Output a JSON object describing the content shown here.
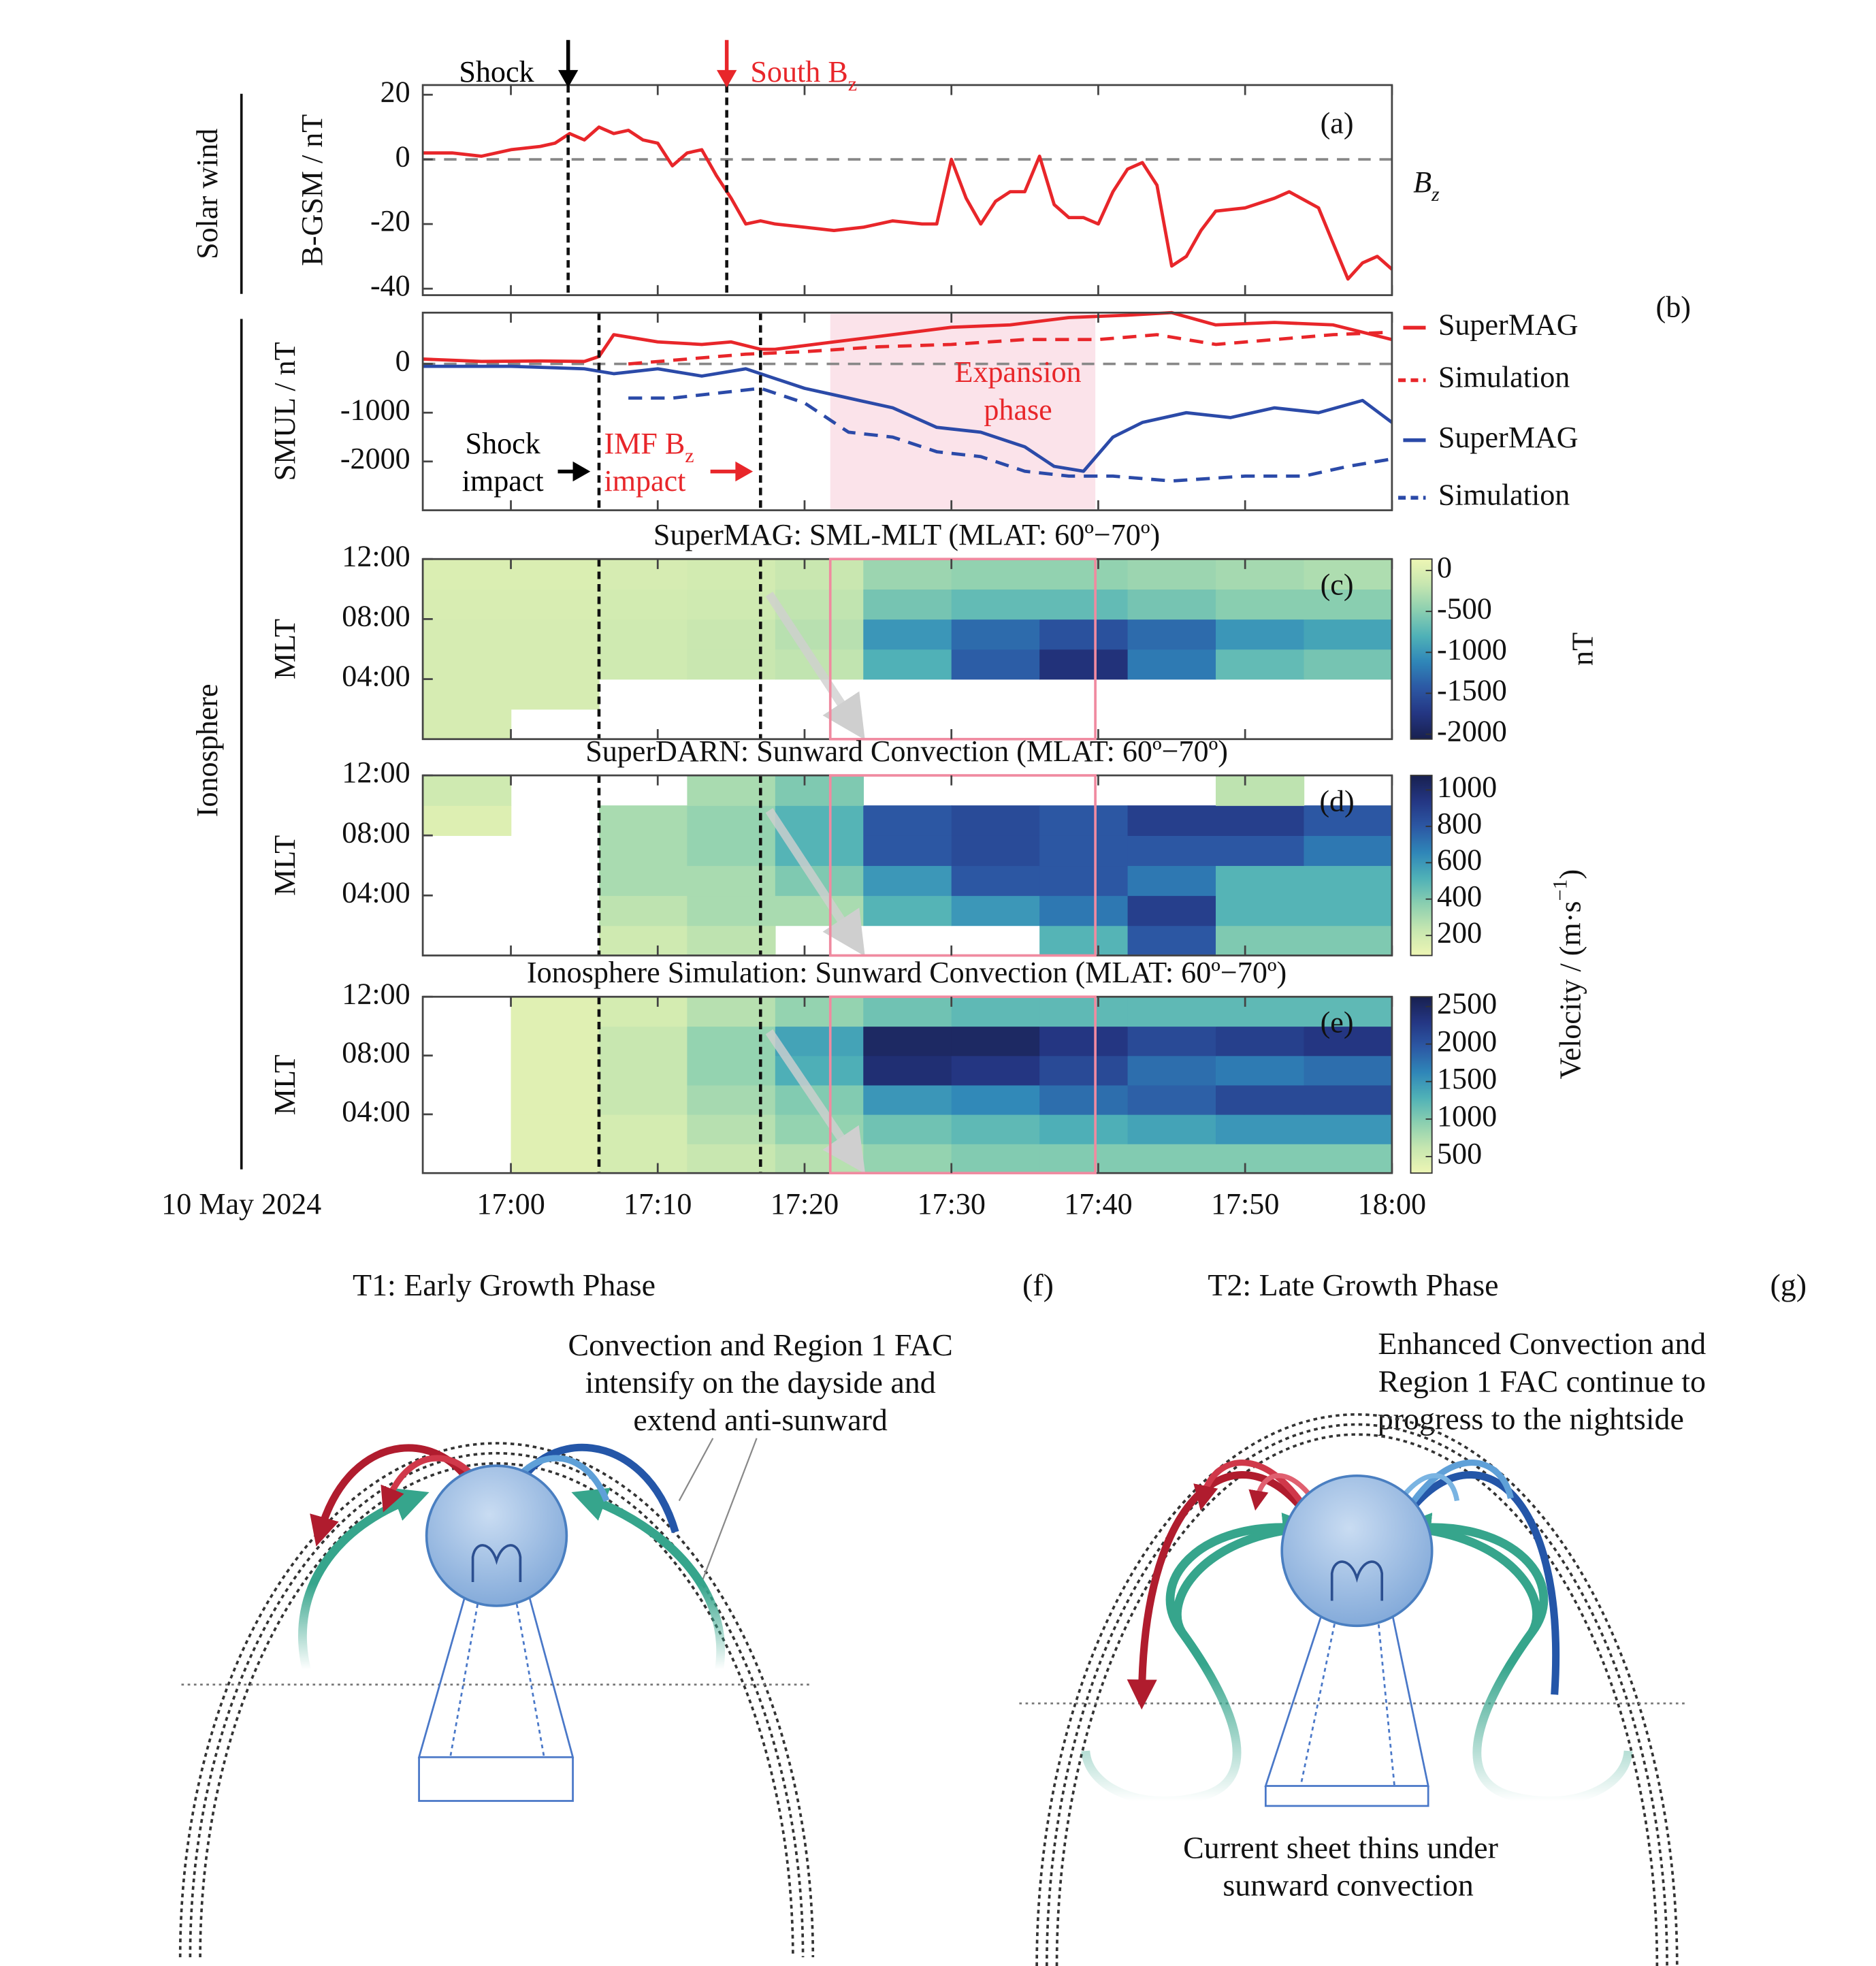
{
  "figure": {
    "row_labels": [
      "Solar wind",
      "Ionosphere"
    ]
  },
  "chart_data": [
    {
      "type": "line",
      "panel_label": "(a)",
      "ylabel": "B-GSM / nT",
      "xlim": [
        1014,
        1080
      ],
      "ylim": [
        -42,
        23
      ],
      "yticks": [
        -40,
        -20,
        0,
        20
      ],
      "zero_line": true,
      "vlines": [
        1023.9,
        1034.7
      ],
      "annotations": [
        {
          "text": "Shock",
          "color": "#000000"
        },
        {
          "text": "South B",
          "sub": "z",
          "color": "#e8262a"
        }
      ],
      "series": [
        {
          "name": "B",
          "sub": "z",
          "color": "#e8262a",
          "dash": false,
          "x": [
            1014,
            1016,
            1018,
            1020,
            1022,
            1023,
            1024,
            1025,
            1026,
            1027,
            1028,
            1029,
            1030,
            1031,
            1032,
            1033,
            1034,
            1035,
            1036,
            1037,
            1038,
            1040,
            1042,
            1044,
            1046,
            1048,
            1049,
            1050,
            1051,
            1052,
            1053,
            1054,
            1055,
            1056,
            1057,
            1058,
            1059,
            1060,
            1061,
            1062,
            1063,
            1064,
            1065,
            1066,
            1067,
            1068,
            1070,
            1072,
            1073,
            1075,
            1076,
            1077,
            1078,
            1079,
            1080
          ],
          "values": [
            2,
            2,
            1,
            3,
            4,
            5,
            8,
            6,
            10,
            8,
            9,
            6,
            5,
            -2,
            2,
            3,
            -5,
            -12,
            -20,
            -19,
            -20,
            -21,
            -22,
            -21,
            -19,
            -20,
            -20,
            0,
            -12,
            -20,
            -13,
            -10,
            -10,
            1,
            -14,
            -18,
            -18,
            -20,
            -10,
            -3,
            -1,
            -8,
            -33,
            -30,
            -22,
            -16,
            -15,
            -12,
            -10,
            -15,
            -26,
            -37,
            -32,
            -30,
            -34
          ]
        }
      ]
    },
    {
      "type": "line",
      "panel_label": "(b)",
      "ylabel": "SMUL / nT",
      "legend": "right",
      "xlim": [
        1014,
        1080
      ],
      "ylim": [
        -3000,
        1050
      ],
      "yticks": [
        -2000,
        -1000,
        0
      ],
      "zero_line": true,
      "vlines": [
        1026.0,
        1037.0
      ],
      "highlight": [
        1041.75,
        1059.8
      ],
      "highlight_fill": true,
      "annotations": [
        {
          "text": "Expansion",
          "color": "#e8262a"
        },
        {
          "text": "phase",
          "color": "#e8262a"
        },
        {
          "text": "Shock",
          "color": "#000000"
        },
        {
          "text": "impact",
          "color": "#000000"
        },
        {
          "text": "IMF B",
          "sub": "z",
          "color": "#e8262a"
        },
        {
          "text": "impact",
          "color": "#e8262a"
        }
      ],
      "series": [
        {
          "name": "SuperMAG",
          "color": "#e8262a",
          "dash": false,
          "x": [
            1014,
            1018,
            1022,
            1025,
            1026,
            1027,
            1030,
            1033,
            1035,
            1037,
            1038,
            1042,
            1046,
            1050,
            1054,
            1058,
            1062,
            1065,
            1068,
            1072,
            1076,
            1080
          ],
          "values": [
            100,
            50,
            60,
            50,
            150,
            600,
            450,
            400,
            450,
            300,
            300,
            450,
            600,
            750,
            800,
            950,
            1000,
            1050,
            800,
            850,
            800,
            500
          ]
        },
        {
          "name": "Simulation",
          "color": "#e8262a",
          "dash": true,
          "x": [
            1028,
            1032,
            1036,
            1040,
            1045,
            1050,
            1055,
            1060,
            1064,
            1068,
            1072,
            1076,
            1080
          ],
          "values": [
            0,
            100,
            200,
            250,
            350,
            400,
            500,
            500,
            600,
            400,
            500,
            600,
            650
          ]
        },
        {
          "name": "SuperMAG",
          "color": "#2b4aa8",
          "dash": false,
          "x": [
            1014,
            1020,
            1025,
            1027,
            1030,
            1033,
            1036,
            1038,
            1040,
            1043,
            1046,
            1049,
            1052,
            1055,
            1057,
            1059,
            1061,
            1063,
            1066,
            1069,
            1072,
            1075,
            1078,
            1080
          ],
          "values": [
            -50,
            -50,
            -100,
            -200,
            -100,
            -250,
            -100,
            -300,
            -500,
            -700,
            -900,
            -1300,
            -1400,
            -1700,
            -2100,
            -2200,
            -1500,
            -1200,
            -1000,
            -1100,
            -900,
            -1000,
            -750,
            -1200
          ]
        },
        {
          "name": "Simulation",
          "color": "#2b4aa8",
          "dash": true,
          "x": [
            1028,
            1031,
            1034,
            1037,
            1040,
            1043,
            1046,
            1049,
            1052,
            1055,
            1058,
            1061,
            1065,
            1070,
            1074,
            1077,
            1080
          ],
          "values": [
            -700,
            -700,
            -600,
            -500,
            -800,
            -1400,
            -1500,
            -1800,
            -1900,
            -2200,
            -2300,
            -2300,
            -2400,
            -2300,
            -2300,
            -2100,
            -1950
          ]
        }
      ]
    },
    {
      "type": "heatmap",
      "panel_label": "(c)",
      "title": "SuperMAG: SML-MLT (MLAT: 60º−70º)",
      "ylabel": "MLT",
      "xlim": [
        1014,
        1080
      ],
      "ylim": [
        0,
        12
      ],
      "yticks": [
        {
          "value": 4,
          "label": "04:00"
        },
        {
          "value": 8,
          "label": "08:00"
        },
        {
          "value": 12,
          "label": "12:00"
        }
      ],
      "vlines": [
        1026.0,
        1037.0
      ],
      "highlight": [
        1041.75,
        1059.8
      ],
      "highlight_fill": false,
      "x_bins": [
        1014,
        1020,
        1026,
        1032,
        1038,
        1044,
        1050,
        1056,
        1062,
        1068,
        1074,
        1080
      ],
      "y_bins": [
        0,
        2,
        4,
        6,
        8,
        10,
        12
      ],
      "z": [
        [
          -50,
          null,
          null,
          null,
          null,
          null,
          null,
          null,
          null,
          null,
          null
        ],
        [
          -50,
          -50,
          null,
          null,
          null,
          null,
          null,
          null,
          null,
          null,
          null
        ],
        [
          -50,
          -50,
          -100,
          -150,
          -200,
          -800,
          -1400,
          -1800,
          -1200,
          -700,
          -600
        ],
        [
          -50,
          -50,
          -100,
          -150,
          -250,
          -1000,
          -1300,
          -1500,
          -1300,
          -1000,
          -900
        ],
        [
          -30,
          -30,
          -80,
          -100,
          -200,
          -600,
          -700,
          -700,
          -600,
          -500,
          -500
        ],
        [
          -20,
          -20,
          -50,
          -80,
          -150,
          -400,
          -450,
          -450,
          -400,
          -350,
          -300
        ]
      ],
      "clim": [
        -2060,
        140
      ],
      "cticks": [
        0,
        -500,
        -1000,
        -1500,
        -2000
      ],
      "cbar_label": {
        "text": "nT"
      },
      "colormap": [
        "#18204f",
        "#243683",
        "#2c58a4",
        "#2f86b8",
        "#4fb1b7",
        "#8bcfb0",
        "#c6e6b0",
        "#eef6b4"
      ]
    },
    {
      "type": "heatmap",
      "panel_label": "(d)",
      "title": "SuperDARN: Sunward Convection (MLAT: 60º−70º)",
      "ylabel": "MLT",
      "xlim": [
        1014,
        1080
      ],
      "ylim": [
        0,
        12
      ],
      "yticks": [
        {
          "value": 4,
          "label": "04:00"
        },
        {
          "value": 8,
          "label": "08:00"
        },
        {
          "value": 12,
          "label": "12:00"
        }
      ],
      "vlines": [
        1026.0,
        1037.0
      ],
      "highlight": [
        1041.75,
        1059.8
      ],
      "highlight_fill": false,
      "x_bins": [
        1014,
        1020,
        1026,
        1032,
        1038,
        1044,
        1050,
        1056,
        1062,
        1068,
        1074,
        1080
      ],
      "y_bins": [
        0,
        2,
        4,
        6,
        8,
        10,
        12
      ],
      "z": [
        [
          null,
          null,
          200,
          250,
          null,
          null,
          null,
          500,
          800,
          400,
          400
        ],
        [
          null,
          null,
          250,
          300,
          300,
          500,
          600,
          700,
          900,
          500,
          500
        ],
        [
          null,
          null,
          300,
          300,
          400,
          600,
          800,
          800,
          700,
          500,
          500
        ],
        [
          null,
          null,
          300,
          350,
          500,
          800,
          850,
          800,
          800,
          800,
          700
        ],
        [
          150,
          null,
          300,
          350,
          500,
          800,
          850,
          800,
          900,
          900,
          800
        ],
        [
          200,
          null,
          null,
          300,
          400,
          null,
          null,
          null,
          null,
          250,
          null
        ]
      ],
      "clim": [
        90,
        1080
      ],
      "cticks": [
        200,
        400,
        600,
        800,
        1000
      ],
      "colormap": [
        "#eef6b4",
        "#c6e6b0",
        "#8bcfb0",
        "#4fb1b7",
        "#2f86b8",
        "#2c58a4",
        "#243683",
        "#18204f"
      ]
    },
    {
      "type": "heatmap",
      "panel_label": "(e)",
      "title": "Ionosphere Simulation: Sunward Convection (MLAT: 60º−70º)",
      "ylabel": "MLT",
      "date_label": "10 May 2024",
      "xlim": [
        1014,
        1080
      ],
      "ylim": [
        0,
        12
      ],
      "xticks": [
        {
          "value": 1020,
          "label": "17:00"
        },
        {
          "value": 1030,
          "label": "17:10"
        },
        {
          "value": 1040,
          "label": "17:20"
        },
        {
          "value": 1050,
          "label": "17:30"
        },
        {
          "value": 1060,
          "label": "17:40"
        },
        {
          "value": 1070,
          "label": "17:50"
        },
        {
          "value": 1080,
          "label": "18:00"
        }
      ],
      "yticks": [
        {
          "value": 4,
          "label": "04:00"
        },
        {
          "value": 8,
          "label": "08:00"
        },
        {
          "value": 12,
          "label": "12:00"
        }
      ],
      "vlines": [
        1026.0,
        1037.0
      ],
      "highlight": [
        1041.75,
        1059.8
      ],
      "highlight_fill": false,
      "x_bins": [
        1014,
        1020,
        1026,
        1032,
        1038,
        1044,
        1050,
        1056,
        1062,
        1068,
        1074,
        1080
      ],
      "y_bins": [
        0,
        2,
        4,
        6,
        8,
        10,
        12
      ],
      "z": [
        [
          null,
          400,
          500,
          600,
          700,
          900,
          1000,
          1000,
          1000,
          1000,
          1000
        ],
        [
          null,
          400,
          500,
          700,
          900,
          1100,
          1200,
          1300,
          1400,
          1500,
          1500
        ],
        [
          null,
          400,
          600,
          800,
          1000,
          1500,
          1600,
          1800,
          1900,
          2100,
          2100
        ],
        [
          null,
          400,
          600,
          900,
          1300,
          2400,
          2300,
          2100,
          1800,
          1700,
          1800
        ],
        [
          null,
          400,
          600,
          900,
          1400,
          2500,
          2500,
          2300,
          2100,
          2200,
          2300
        ],
        [
          null,
          400,
          500,
          700,
          900,
          1100,
          1200,
          1200,
          1200,
          1200,
          1200
        ]
      ],
      "clim": [
        280,
        2630
      ],
      "cticks": [
        500,
        1000,
        1500,
        2000,
        2500
      ],
      "cbar_label": {
        "text": "Velocity / (m·s",
        "sup": "−1",
        "tail": ")"
      },
      "colormap": [
        "#eef6b4",
        "#c6e6b0",
        "#8bcfb0",
        "#4fb1b7",
        "#2f86b8",
        "#2c58a4",
        "#243683",
        "#18204f"
      ]
    }
  ],
  "diagrams": [
    {
      "title": "T1: Early Growth Phase",
      "panel_label": "(f)",
      "annotation_lines": [
        "Convection and Region 1 FAC",
        "intensify on the dayside and",
        "extend anti-sunward"
      ]
    },
    {
      "title": "T2: Late Growth Phase",
      "panel_label": "(g)",
      "annotation_lines": [
        "Enhanced Convection and",
        "Region 1 FAC continue to",
        "progress to the nightside"
      ],
      "bottom_lines": [
        "Current sheet thins under",
        "sunward convection"
      ]
    }
  ]
}
